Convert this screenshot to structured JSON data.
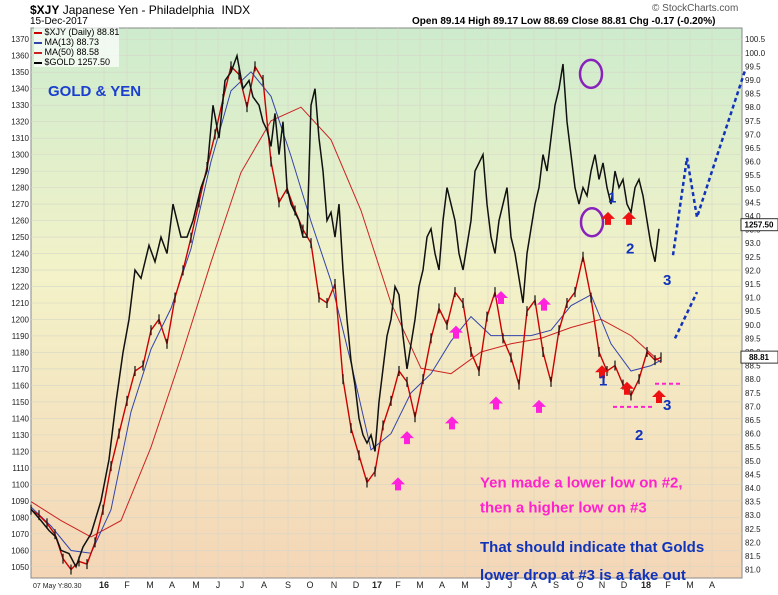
{
  "header": {
    "symbol": "$XJY",
    "name": "Japanese Yen - Philadelphia",
    "exchange": "INDX",
    "date": "15-Dec-2017",
    "ohlc": "Open 89.14  High 89.17  Low 88.69  Close 88.81  Chg -0.17 (-0.20%)",
    "copyright": "© StockCharts.com"
  },
  "legend": [
    {
      "text": "$XJY (Daily) 88.81",
      "color": "#cc0000"
    },
    {
      "text": "MA(13) 88.73",
      "color": "#3344aa"
    },
    {
      "text": "MA(50) 88.58",
      "color": "#cc2222"
    },
    {
      "text": "$GOLD 1257.50",
      "color": "#000000"
    }
  ],
  "chart_data": {
    "type": "line",
    "title": "GOLD & YEN",
    "x_ticks": [
      "07 May Y:80.30",
      "16",
      "F",
      "M",
      "A",
      "M",
      "J",
      "J",
      "A",
      "S",
      "O",
      "N",
      "D",
      "17",
      "F",
      "M",
      "A",
      "M",
      "J",
      "J",
      "A",
      "S",
      "O",
      "N",
      "D",
      "18",
      "F",
      "M",
      "A"
    ],
    "y_left": {
      "ticks": [
        1050,
        1060,
        1070,
        1080,
        1090,
        1100,
        1110,
        1120,
        1130,
        1140,
        1150,
        1160,
        1170,
        1180,
        1190,
        1200,
        1210,
        1220,
        1230,
        1240,
        1250,
        1260,
        1270,
        1280,
        1290,
        1300,
        1310,
        1320,
        1330,
        1340,
        1350,
        1360,
        1370
      ],
      "range": [
        1045,
        1375
      ]
    },
    "y_right": {
      "ticks": [
        "100.5",
        "100.0",
        "99.5",
        "99.0",
        "98.5",
        "98.0",
        "97.5",
        "97.0",
        "96.5",
        "96.0",
        "95.5",
        "95.0",
        "94.5",
        "94.0",
        "93.5",
        "93.0",
        "92.5",
        "92.0",
        "91.5",
        "91.0",
        "90.5",
        "90.0",
        "89.5",
        "89.0",
        "88.5",
        "88.0",
        "87.5",
        "87.0",
        "86.5",
        "86.0",
        "85.5",
        "85.0",
        "84.5",
        "84.0",
        "83.5",
        "83.0",
        "82.5",
        "82.0",
        "81.5",
        "81.0"
      ],
      "range": [
        80.8,
        100.8
      ]
    },
    "last_value_tags": [
      {
        "text": "1257.50",
        "axis": "left"
      },
      {
        "text": "88.81",
        "axis": "right"
      }
    ],
    "series": [
      {
        "name": "$GOLD",
        "axis": "left",
        "color": "#111111",
        "x": [
          0,
          10,
          18,
          25,
          30,
          38,
          45,
          52,
          60,
          70,
          78,
          85,
          92,
          98,
          104,
          110,
          118,
          124,
          130,
          136,
          142,
          150,
          156,
          162,
          170,
          176,
          182,
          188,
          194,
          200,
          206,
          212,
          218,
          222,
          228,
          232,
          236,
          240,
          244,
          248,
          252,
          256,
          260,
          264,
          268,
          272,
          276,
          280,
          284,
          288,
          292,
          296,
          300,
          304,
          308,
          312,
          316,
          320,
          324,
          328,
          332,
          336,
          340,
          344,
          348,
          352,
          356,
          360,
          364,
          368,
          372,
          376,
          380,
          384,
          388,
          392,
          396,
          400,
          404,
          408,
          412,
          416,
          420,
          424,
          428,
          432,
          436,
          440,
          444,
          448,
          452,
          456,
          460,
          464,
          468,
          472,
          476,
          480,
          484,
          488,
          492,
          496,
          500,
          504,
          508,
          512,
          516,
          520,
          524,
          528,
          532,
          536,
          540,
          544,
          548,
          552,
          556,
          560,
          564,
          568,
          572,
          576,
          580,
          584,
          588,
          592,
          596,
          600,
          604,
          608,
          612,
          616,
          620,
          624,
          628
        ],
        "y": [
          1085,
          1078,
          1072,
          1068,
          1060,
          1058,
          1050,
          1062,
          1070,
          1090,
          1115,
          1150,
          1180,
          1200,
          1230,
          1225,
          1245,
          1235,
          1250,
          1240,
          1270,
          1250,
          1250,
          1260,
          1280,
          1290,
          1330,
          1310,
          1345,
          1350,
          1360,
          1340,
          1345,
          1335,
          1330,
          1320,
          1315,
          1305,
          1325,
          1300,
          1320,
          1280,
          1270,
          1265,
          1260,
          1250,
          1250,
          1330,
          1340,
          1310,
          1290,
          1260,
          1265,
          1250,
          1270,
          1230,
          1200,
          1175,
          1160,
          1140,
          1130,
          1125,
          1130,
          1120,
          1150,
          1170,
          1190,
          1200,
          1220,
          1215,
          1190,
          1170,
          1185,
          1200,
          1220,
          1230,
          1250,
          1255,
          1240,
          1230,
          1260,
          1280,
          1270,
          1260,
          1240,
          1230,
          1245,
          1260,
          1290,
          1295,
          1300,
          1270,
          1250,
          1240,
          1260,
          1270,
          1280,
          1250,
          1240,
          1225,
          1210,
          1240,
          1255,
          1270,
          1280,
          1300,
          1290,
          1310,
          1330,
          1340,
          1355,
          1320,
          1300,
          1280,
          1270,
          1280,
          1275,
          1290,
          1300,
          1285,
          1295,
          1280,
          1270,
          1290,
          1280,
          1285,
          1270,
          1265,
          1280,
          1285,
          1275,
          1260,
          1245,
          1235,
          1255
        ]
      },
      {
        "name": "$XJY",
        "axis": "right",
        "color": "#cc0000",
        "x": [
          0,
          8,
          16,
          24,
          32,
          40,
          48,
          56,
          64,
          72,
          80,
          88,
          96,
          104,
          112,
          120,
          128,
          136,
          144,
          152,
          160,
          168,
          176,
          184,
          192,
          200,
          208,
          216,
          224,
          232,
          240,
          248,
          256,
          264,
          272,
          280,
          288,
          296,
          304,
          312,
          320,
          328,
          336,
          344,
          352,
          360,
          368,
          376,
          384,
          392,
          400,
          408,
          416,
          424,
          432,
          440,
          448,
          456,
          464,
          472,
          480,
          488,
          496,
          504,
          512,
          520,
          528,
          536,
          544,
          552,
          560,
          568,
          576,
          584,
          592,
          600,
          608,
          616,
          624,
          630
        ],
        "y": [
          83.2,
          83.0,
          82.7,
          82.3,
          81.4,
          81.0,
          81.3,
          81.2,
          82.0,
          83.2,
          84.8,
          86.0,
          87.2,
          88.3,
          88.5,
          89.8,
          90.2,
          89.3,
          91.0,
          92.0,
          93.2,
          94.5,
          95.8,
          97.0,
          98.3,
          99.5,
          99.2,
          98.0,
          99.5,
          99.0,
          96.0,
          94.5,
          95.0,
          94.2,
          93.5,
          93.0,
          91.0,
          90.8,
          91.5,
          88.0,
          86.2,
          85.2,
          84.2,
          84.6,
          86.3,
          87.2,
          88.3,
          87.9,
          86.6,
          88.0,
          89.5,
          90.6,
          90.0,
          91.2,
          90.8,
          89.0,
          88.3,
          90.3,
          91.2,
          89.5,
          88.8,
          87.8,
          90.5,
          90.9,
          89.0,
          87.9,
          89.8,
          90.8,
          91.2,
          92.5,
          91.0,
          89.0,
          88.3,
          88.5,
          87.8,
          87.4,
          88.0,
          89.0,
          88.7,
          88.8
        ]
      },
      {
        "name": "MA(13)",
        "axis": "right",
        "color": "#3344aa",
        "x": [
          0,
          20,
          40,
          60,
          80,
          100,
          120,
          140,
          160,
          180,
          200,
          220,
          240,
          260,
          280,
          300,
          320,
          340,
          360,
          380,
          400,
          420,
          440,
          460,
          480,
          500,
          520,
          540,
          560,
          580,
          600,
          620,
          630
        ],
        "y": [
          83.3,
          82.6,
          81.7,
          81.6,
          83.2,
          86.8,
          89.1,
          90.6,
          92.8,
          96.0,
          98.6,
          99.3,
          98.4,
          96.2,
          93.8,
          91.6,
          88.6,
          85.4,
          86.0,
          87.5,
          88.2,
          89.4,
          90.3,
          89.6,
          89.6,
          89.6,
          89.8,
          90.7,
          91.1,
          89.3,
          88.3,
          88.5,
          88.7
        ]
      },
      {
        "name": "MA(50)",
        "axis": "right",
        "color": "#cc2222",
        "x": [
          0,
          30,
          60,
          90,
          120,
          150,
          180,
          210,
          240,
          270,
          300,
          330,
          360,
          390,
          420,
          450,
          480,
          510,
          540,
          570,
          600,
          630
        ],
        "y": [
          83.5,
          82.8,
          82.2,
          82.8,
          85.5,
          88.8,
          92.3,
          95.6,
          97.5,
          98.0,
          96.8,
          94.2,
          90.8,
          88.4,
          88.2,
          89.0,
          89.3,
          89.5,
          89.9,
          90.2,
          89.6,
          88.6
        ]
      }
    ],
    "projections": [
      {
        "axis": "left",
        "style": "dashed",
        "color": "#1133bb",
        "x": [
          642,
          656,
          666,
          688,
          714
        ],
        "y": [
          1239,
          1298,
          1262,
          1303,
          1351
        ]
      },
      {
        "axis": "right",
        "style": "dashed",
        "color": "#1133bb",
        "x": [
          644,
          666
        ],
        "y": [
          89.5,
          91.2
        ]
      }
    ],
    "annotations": [
      {
        "text": "1",
        "color": "#1133bb",
        "x": 577,
        "y": 1271
      },
      {
        "text": "2",
        "color": "#1133bb",
        "x": 595,
        "y": 1240
      },
      {
        "text": "3",
        "color": "#1133bb",
        "x": 632,
        "y": 1221
      },
      {
        "text": "1",
        "color": "#1133bb",
        "x": 568,
        "y": 1160
      },
      {
        "text": "2",
        "color": "#1133bb",
        "x": 604,
        "y": 1127
      },
      {
        "text": "3",
        "color": "#1133bb",
        "x": 632,
        "y": 1145
      },
      {
        "text": "Yen made a lower low on #2,",
        "color": "#ff22cc",
        "x": 449,
        "y": 1098
      },
      {
        "text": "then a higher low on #3",
        "color": "#ff22cc",
        "x": 449,
        "y": 1083
      },
      {
        "text": "That should indicate that Golds",
        "color": "#1133bb",
        "x": 449,
        "y": 1059
      },
      {
        "text": "lower drop at #3 is a fake out",
        "color": "#1133bb",
        "x": 449,
        "y": 1042
      }
    ],
    "circles": [
      {
        "x": 560,
        "y": 1349
      },
      {
        "x": 561,
        "y": 1259
      }
    ],
    "up_arrows_magenta": [
      [
        367,
        1100
      ],
      [
        376,
        1128
      ],
      [
        421,
        1137
      ],
      [
        425,
        1192
      ],
      [
        465,
        1149
      ],
      [
        470,
        1213
      ],
      [
        508,
        1147
      ],
      [
        513,
        1209
      ]
    ],
    "up_arrows_red": [
      [
        577,
        1261
      ],
      [
        598,
        1261
      ],
      [
        571,
        1168
      ],
      [
        596,
        1158
      ],
      [
        628,
        1153
      ]
    ],
    "support_lines": [
      {
        "y": 1161,
        "x1": 624,
        "x2": 652
      },
      {
        "y": 1147,
        "x1": 582,
        "x2": 622
      }
    ],
    "grid": true,
    "legend_placement": "top-left"
  }
}
